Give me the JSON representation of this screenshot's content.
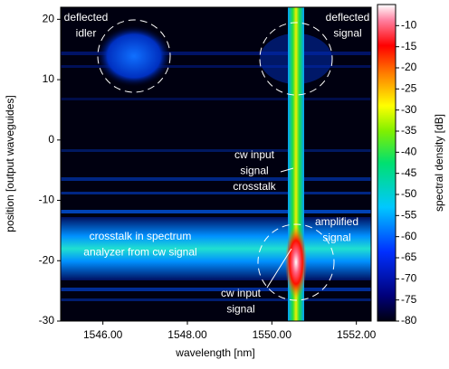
{
  "chart_data": {
    "type": "heatmap",
    "x_label": "wavelength [nm]",
    "y_label": "position [output waveguides]",
    "colorbar_label": "spectral density [dB]",
    "xlim": [
      1545,
      1552.35
    ],
    "xticks": [
      {
        "value": 1546,
        "label": "1546.00"
      },
      {
        "value": 1548,
        "label": "1548.00"
      },
      {
        "value": 1550,
        "label": "1550.00"
      },
      {
        "value": 1552,
        "label": "1552.00"
      }
    ],
    "ylim": [
      -30,
      22
    ],
    "yticks": [
      -30,
      -20,
      -10,
      0,
      10,
      20
    ],
    "zlim": [
      -80,
      -5
    ],
    "zticks": [
      -80,
      -75,
      -70,
      -65,
      -60,
      -55,
      -50,
      -45,
      -40,
      -35,
      -30,
      -25,
      -20,
      -15,
      -10
    ],
    "annotations": [
      {
        "lines": [
          "deflected",
          "idler"
        ]
      },
      {
        "lines": [
          "deflected",
          "signal"
        ]
      },
      {
        "lines": [
          "cw input",
          "signal",
          "crosstalk"
        ]
      },
      {
        "lines": [
          "amplified",
          "signal"
        ]
      },
      {
        "lines": [
          "crosstalk in spectrum",
          "analyzer from cw signal"
        ]
      },
      {
        "lines": [
          "cw input",
          "signal"
        ]
      }
    ]
  }
}
